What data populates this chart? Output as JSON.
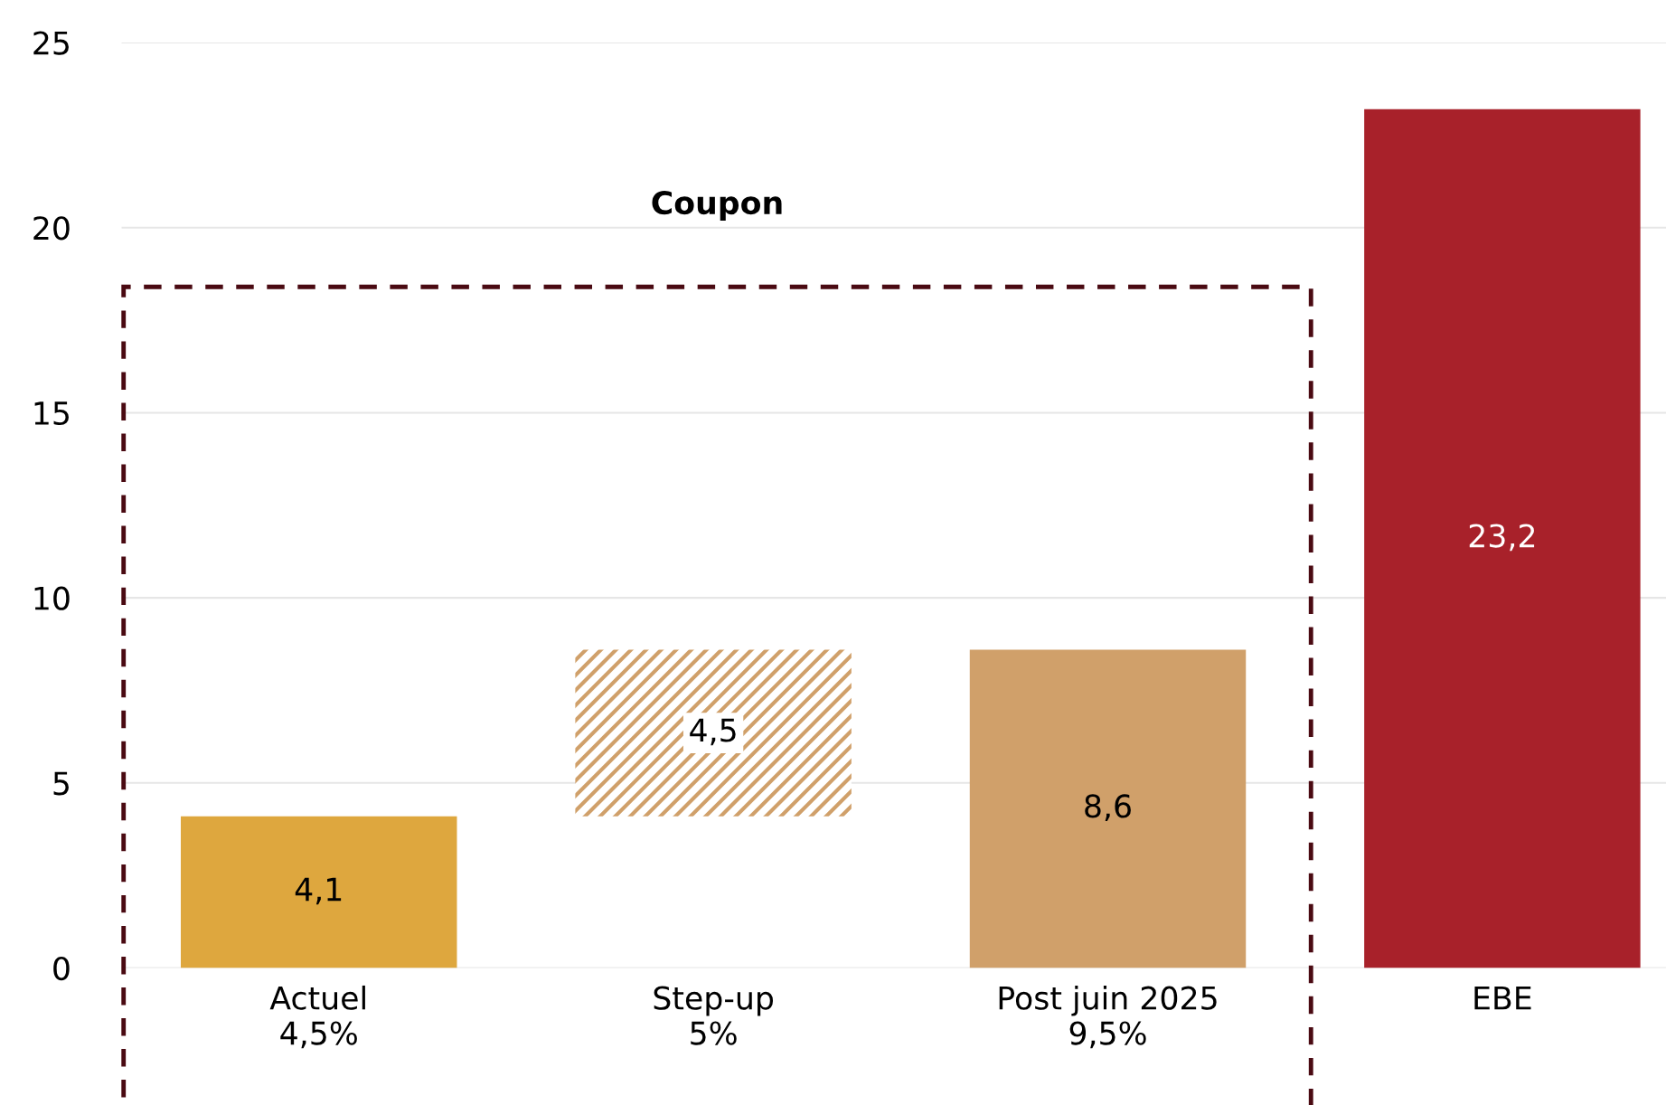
{
  "chart_data": {
    "type": "bar",
    "categories": [
      "Actuel\n4,5%",
      "Step-up\n5%",
      "Post juin 2025\n9,5%",
      "EBE"
    ],
    "values": [
      4.1,
      4.5,
      8.6,
      23.2
    ],
    "base": [
      0,
      4.1,
      0,
      0
    ],
    "colors": [
      "#dea73e",
      "#d0a06a",
      "#d0a06a",
      "#a8212a"
    ],
    "value_labels": [
      "4,1",
      "4,5",
      "8,6",
      "23,2"
    ],
    "ylim": [
      0,
      25
    ],
    "yticks": [
      0,
      5,
      10,
      15,
      20,
      25
    ],
    "grid": "y",
    "annotations": [
      "Coupon"
    ]
  }
}
